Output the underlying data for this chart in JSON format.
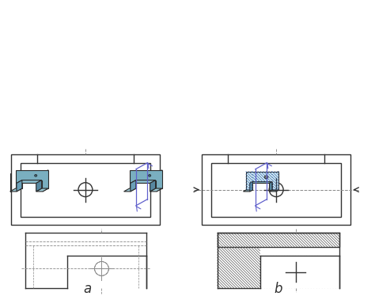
{
  "bg_color": "#ffffff",
  "line_color": "#333333",
  "dash_color": "#888888",
  "hatch_color": "#555555",
  "iso_fill_color": "#7aafc0",
  "iso_fill_light": "#a8ccd8",
  "cutting_plane_color": "#b5aa8a",
  "cutting_line_color": "#6060cc",
  "label_a": "a",
  "label_b": "b",
  "label_fontsize": 12
}
